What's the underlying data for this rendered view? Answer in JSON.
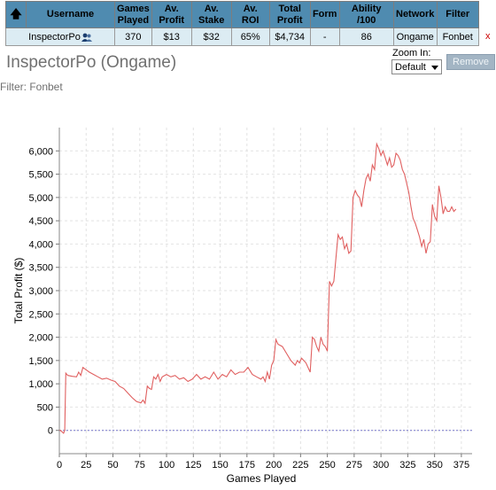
{
  "table": {
    "headers": [
      "Username",
      "Games Played",
      "Av. Profit",
      "Av. Stake",
      "Av. ROI",
      "Total Profit",
      "Form",
      "Ability /100",
      "Network",
      "Filter"
    ],
    "row": {
      "username": "InspectorPo",
      "games_played": "370",
      "av_profit": "$13",
      "av_stake": "$32",
      "av_roi": "65%",
      "total_profit": "$4,734",
      "form": "-",
      "ability": "86",
      "network": "Ongame",
      "filter": "Fonbet",
      "remove_x": "x"
    }
  },
  "page_title": "InspectorPo (Ongame)",
  "filter_text": "Filter: Fonbet",
  "zoom": {
    "label": "Zoom In:",
    "value": "Default"
  },
  "remove_label": "Remove",
  "colors": {
    "header_bg": "#4f8bb0",
    "row_bg": "#dcecf3",
    "line": "#e06060",
    "link": "#8b0000"
  },
  "icons": {
    "sort": "up-arrow-icon",
    "user": "user-icon"
  },
  "chart_data": {
    "type": "line",
    "xlabel": "Games Played",
    "ylabel": "Total Profit ($)",
    "xlim": [
      0,
      385
    ],
    "ylim": [
      -500,
      6500
    ],
    "xticks": [
      0,
      25,
      50,
      75,
      100,
      125,
      150,
      175,
      200,
      225,
      250,
      275,
      300,
      325,
      350,
      375
    ],
    "yticks": [
      0,
      500,
      1000,
      1500,
      2000,
      2500,
      3000,
      3500,
      4000,
      4500,
      5000,
      5500,
      6000
    ],
    "grid": true,
    "zero_line": true,
    "x": [
      0,
      1,
      2,
      3,
      4,
      5,
      6,
      7,
      8,
      12,
      16,
      18,
      20,
      22,
      25,
      28,
      32,
      36,
      40,
      44,
      48,
      52,
      56,
      60,
      64,
      68,
      72,
      76,
      78,
      80,
      82,
      84,
      86,
      88,
      90,
      92,
      94,
      96,
      100,
      104,
      108,
      112,
      116,
      120,
      124,
      128,
      132,
      136,
      140,
      144,
      148,
      152,
      156,
      160,
      164,
      168,
      172,
      176,
      180,
      184,
      188,
      190,
      192,
      194,
      196,
      198,
      200,
      202,
      204,
      208,
      212,
      216,
      220,
      222,
      224,
      226,
      230,
      234,
      236,
      238,
      240,
      242,
      244,
      246,
      248,
      250,
      252,
      254,
      256,
      258,
      260,
      262,
      264,
      266,
      268,
      270,
      272,
      274,
      276,
      278,
      280,
      282,
      284,
      286,
      288,
      290,
      292,
      294,
      296,
      298,
      300,
      302,
      304,
      306,
      308,
      310,
      312,
      314,
      316,
      318,
      320,
      322,
      324,
      326,
      328,
      330,
      332,
      334,
      336,
      338,
      340,
      342,
      344,
      346,
      348,
      350,
      352,
      354,
      356,
      358,
      360,
      362,
      364,
      366,
      368,
      370
    ],
    "y": [
      0,
      0,
      -20,
      -40,
      -60,
      0,
      1230,
      1200,
      1180,
      1160,
      1150,
      1250,
      1180,
      1350,
      1300,
      1250,
      1200,
      1150,
      1100,
      1120,
      1080,
      1050,
      950,
      900,
      800,
      700,
      620,
      590,
      650,
      580,
      950,
      900,
      880,
      1150,
      1100,
      1200,
      1050,
      1150,
      1200,
      1150,
      1180,
      1100,
      1130,
      1050,
      1100,
      1200,
      1100,
      1150,
      1100,
      1250,
      1100,
      1200,
      1150,
      1300,
      1200,
      1250,
      1250,
      1350,
      1200,
      1150,
      1100,
      1150,
      1050,
      1250,
      1100,
      1400,
      1500,
      1950,
      1850,
      1800,
      1650,
      1500,
      1400,
      1500,
      1450,
      1550,
      1450,
      1250,
      2000,
      1950,
      1800,
      1700,
      2000,
      1850,
      1800,
      1700,
      3200,
      3100,
      3200,
      3700,
      4200,
      4100,
      4150,
      3900,
      4000,
      3800,
      3850,
      5000,
      5150,
      5050,
      5000,
      4800,
      5150,
      5400,
      5500,
      5350,
      5700,
      5600,
      6150,
      6050,
      5900,
      6000,
      5850,
      5700,
      5850,
      5650,
      5700,
      5950,
      5900,
      5800,
      5600,
      5500,
      5300,
      5100,
      4800,
      4550,
      4450,
      4300,
      4150,
      3950,
      4100,
      3800,
      4000,
      4050,
      4850,
      4600,
      4500,
      5250,
      5000,
      4650,
      4800,
      4700,
      4700,
      4800,
      4700,
      4750
    ]
  }
}
